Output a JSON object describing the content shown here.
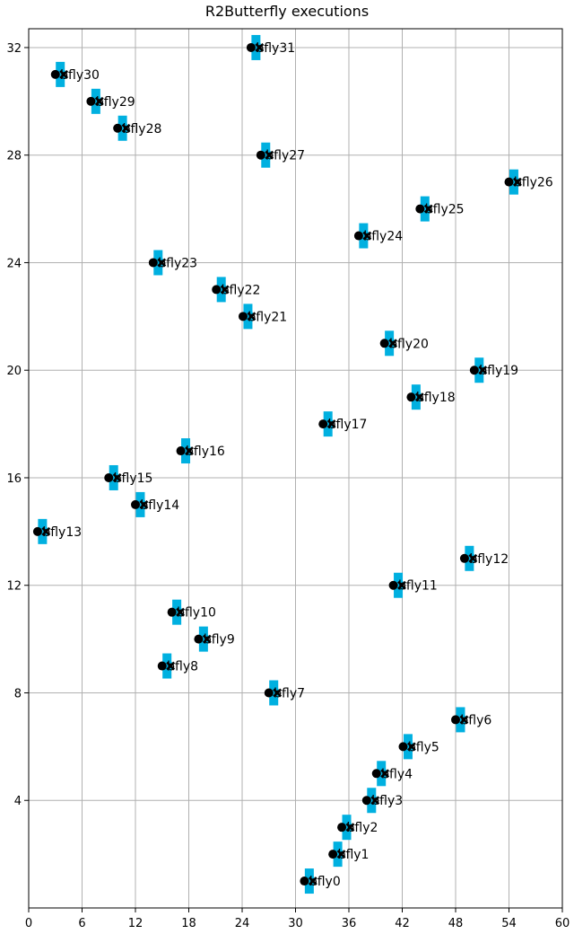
{
  "chart_data": {
    "type": "scatter",
    "title": "R2Butterfly executions",
    "xlabel": "",
    "ylabel": "",
    "xlim": [
      0,
      60
    ],
    "ylim": [
      0,
      32.7
    ],
    "xticks": [
      0,
      6,
      12,
      18,
      24,
      30,
      36,
      42,
      48,
      54,
      60
    ],
    "yticks": [
      4,
      8,
      12,
      16,
      20,
      24,
      28,
      32
    ],
    "grid": true,
    "colors": {
      "dot": "#000000",
      "cross": "#000000",
      "rect": "#00b0e0"
    },
    "points": [
      {
        "label": "bfly0",
        "x": 31.0,
        "y": 1
      },
      {
        "label": "bfly1",
        "x": 34.2,
        "y": 2
      },
      {
        "label": "bfly2",
        "x": 35.2,
        "y": 3
      },
      {
        "label": "bfly3",
        "x": 38.0,
        "y": 4
      },
      {
        "label": "bfly4",
        "x": 39.1,
        "y": 5
      },
      {
        "label": "bfly5",
        "x": 42.1,
        "y": 6
      },
      {
        "label": "bfly6",
        "x": 48.0,
        "y": 7
      },
      {
        "label": "bfly7",
        "x": 27.0,
        "y": 8
      },
      {
        "label": "bfly8",
        "x": 15.0,
        "y": 9
      },
      {
        "label": "bfly9",
        "x": 19.1,
        "y": 10
      },
      {
        "label": "bfly10",
        "x": 16.1,
        "y": 11
      },
      {
        "label": "bfly11",
        "x": 41.0,
        "y": 12
      },
      {
        "label": "bfly12",
        "x": 49.0,
        "y": 13
      },
      {
        "label": "bfly13",
        "x": 1.0,
        "y": 14
      },
      {
        "label": "bfly14",
        "x": 12.0,
        "y": 15
      },
      {
        "label": "bfly15",
        "x": 9.0,
        "y": 16
      },
      {
        "label": "bfly16",
        "x": 17.1,
        "y": 17
      },
      {
        "label": "bfly17",
        "x": 33.1,
        "y": 18
      },
      {
        "label": "bfly18",
        "x": 43.0,
        "y": 19
      },
      {
        "label": "bfly19",
        "x": 50.1,
        "y": 20
      },
      {
        "label": "bfly20",
        "x": 40.0,
        "y": 21
      },
      {
        "label": "bfly21",
        "x": 24.1,
        "y": 22
      },
      {
        "label": "bfly22",
        "x": 21.1,
        "y": 23
      },
      {
        "label": "bfly23",
        "x": 14.0,
        "y": 24
      },
      {
        "label": "bfly24",
        "x": 37.1,
        "y": 25
      },
      {
        "label": "bfly25",
        "x": 44.0,
        "y": 26
      },
      {
        "label": "bfly26",
        "x": 54.0,
        "y": 27
      },
      {
        "label": "bfly27",
        "x": 26.1,
        "y": 28
      },
      {
        "label": "bfly28",
        "x": 10.0,
        "y": 29
      },
      {
        "label": "bfly29",
        "x": 7.0,
        "y": 30
      },
      {
        "label": "bfly30",
        "x": 3.0,
        "y": 31
      },
      {
        "label": "bfly31",
        "x": 25.0,
        "y": 32
      }
    ]
  }
}
